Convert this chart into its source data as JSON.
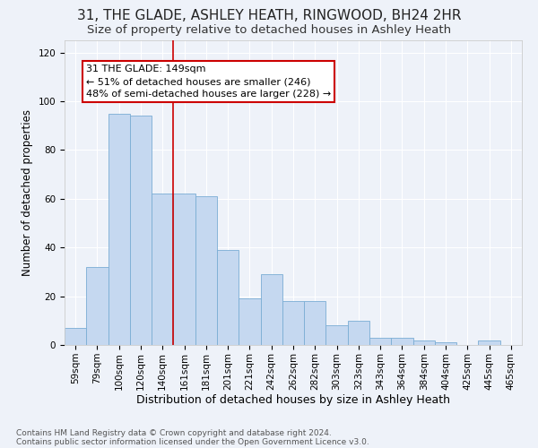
{
  "title1": "31, THE GLADE, ASHLEY HEATH, RINGWOOD, BH24 2HR",
  "title2": "Size of property relative to detached houses in Ashley Heath",
  "xlabel": "Distribution of detached houses by size in Ashley Heath",
  "ylabel": "Number of detached properties",
  "footer1": "Contains HM Land Registry data © Crown copyright and database right 2024.",
  "footer2": "Contains public sector information licensed under the Open Government Licence v3.0.",
  "annotation_line1": "31 THE GLADE: 149sqm",
  "annotation_line2": "← 51% of detached houses are smaller (246)",
  "annotation_line3": "48% of semi-detached houses are larger (228) →",
  "bar_labels": [
    "59sqm",
    "79sqm",
    "100sqm",
    "120sqm",
    "140sqm",
    "161sqm",
    "181sqm",
    "201sqm",
    "221sqm",
    "242sqm",
    "262sqm",
    "282sqm",
    "303sqm",
    "323sqm",
    "343sqm",
    "364sqm",
    "384sqm",
    "404sqm",
    "425sqm",
    "445sqm",
    "465sqm"
  ],
  "bar_values": [
    7,
    32,
    95,
    94,
    62,
    62,
    61,
    39,
    19,
    29,
    18,
    18,
    8,
    10,
    3,
    3,
    2,
    1,
    0,
    2,
    0
  ],
  "bar_color": "#c5d8f0",
  "bar_edge_color": "#7aadd4",
  "red_line_x": 4.5,
  "ylim": [
    0,
    125
  ],
  "yticks": [
    0,
    20,
    40,
    60,
    80,
    100,
    120
  ],
  "background_color": "#eef2f9",
  "grid_color": "#ffffff",
  "annotation_box_color": "#ffffff",
  "annotation_box_edge": "#cc0000",
  "red_line_color": "#cc0000",
  "title1_fontsize": 11,
  "title2_fontsize": 9.5,
  "xlabel_fontsize": 9,
  "ylabel_fontsize": 8.5,
  "tick_fontsize": 7.5,
  "annotation_fontsize": 8,
  "footer_fontsize": 6.5
}
